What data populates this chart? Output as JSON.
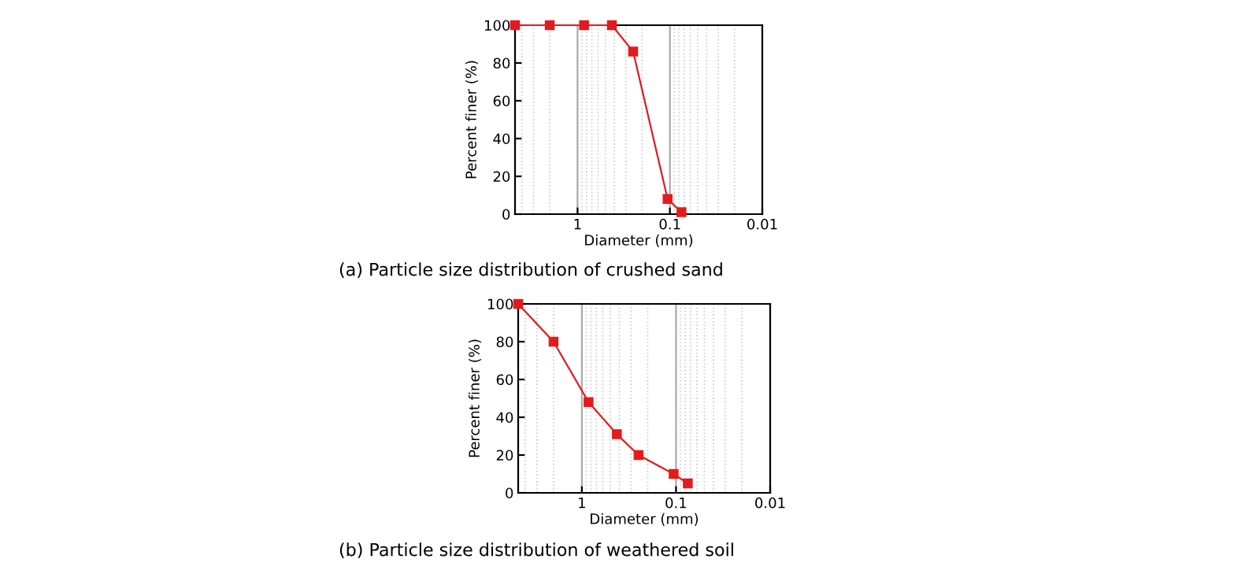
{
  "chart_data": [
    {
      "type": "line",
      "title": "(a) Particle size distribution of crushed sand",
      "xlabel": "Diameter (mm)",
      "ylabel": "Percent finer (%)",
      "log": "x",
      "xlim": [
        4.75,
        0.01
      ],
      "xticks": [
        1,
        0.1,
        0.01
      ],
      "ylim": [
        0,
        100
      ],
      "yticks": [
        0,
        20,
        40,
        60,
        80,
        100
      ],
      "grid": "x",
      "marker": "square",
      "line_style": "solid",
      "series": [
        {
          "color": "#e41a1c",
          "x": [
            4.75,
            2.0,
            0.85,
            0.425,
            0.25,
            0.106,
            0.075
          ],
          "values": [
            100,
            100,
            100,
            100,
            86,
            8,
            1
          ]
        }
      ]
    },
    {
      "type": "line",
      "title": "(b) Particle size distribution of weathered soil",
      "xlabel": "Diameter (mm)",
      "ylabel": "Percent finer (%)",
      "log": "x",
      "xlim": [
        4.75,
        0.01
      ],
      "xticks": [
        1,
        0.1,
        0.01
      ],
      "ylim": [
        0,
        100
      ],
      "yticks": [
        0,
        20,
        40,
        60,
        80,
        100
      ],
      "grid": "x",
      "marker": "square",
      "line_style": "solid",
      "series": [
        {
          "color": "#e41a1c",
          "x": [
            4.75,
            2.0,
            0.85,
            0.425,
            0.25,
            0.106,
            0.075
          ],
          "values": [
            100,
            80,
            48,
            31,
            20,
            10,
            5
          ]
        }
      ]
    }
  ]
}
